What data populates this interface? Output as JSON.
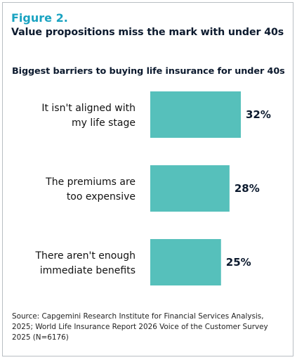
{
  "figure": {
    "label": "Figure 2.",
    "title": "Value propositions miss the mark with under 40s"
  },
  "colors": {
    "accent": "#1aa3c1",
    "bar": "#56c0bb",
    "border": "#b9bec3"
  },
  "chart_data": {
    "type": "bar",
    "orientation": "horizontal",
    "title": "Biggest barriers to buying life insurance for under 40s",
    "categories": [
      [
        "It isn't aligned with",
        "my life stage"
      ],
      [
        "The premiums are",
        "too expensive"
      ],
      [
        "There aren't enough",
        "immediate benefits"
      ]
    ],
    "values": [
      32,
      28,
      25
    ],
    "value_labels": [
      "32%",
      "28%",
      "25%"
    ],
    "unit": "%",
    "xlim": [
      0,
      32
    ],
    "grid": false,
    "legend": "none"
  },
  "source": {
    "text": "Source:  Capgemini Research Institute for Financial Services Analysis, 2025;  World Life Insurance Report 2026 Voice of the Customer Survey 2025 (N=6176)"
  }
}
